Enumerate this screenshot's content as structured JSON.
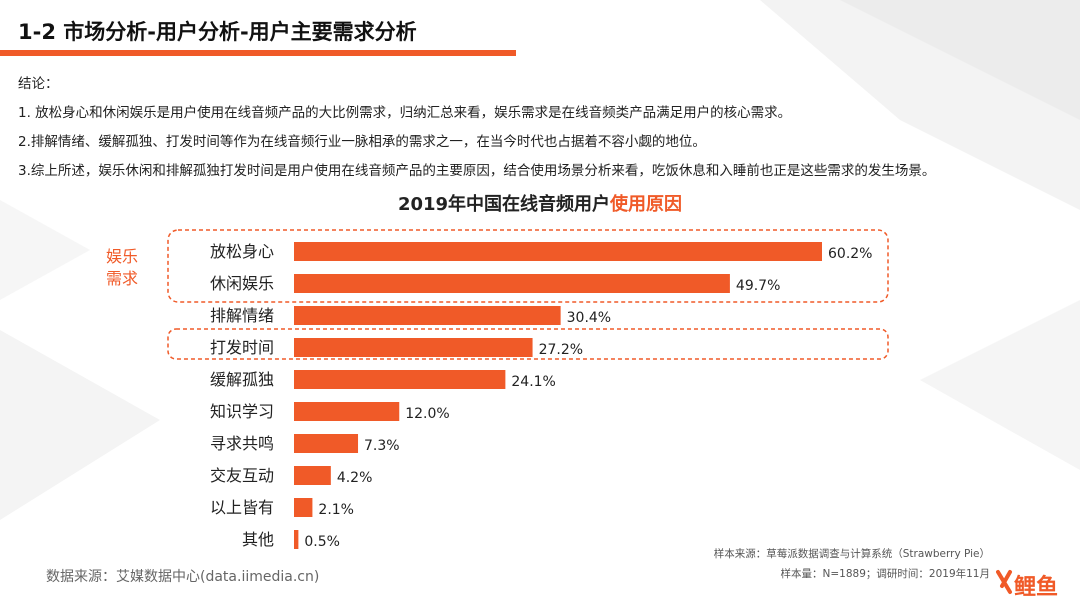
{
  "header": {
    "title": "1-2 市场分析-用户分析-用户主要需求分析"
  },
  "conclusion": {
    "heading": "结论：",
    "lines": [
      "1. 放松身心和休闲娱乐是用户使用在线音频产品的大比例需求，归纳汇总来看，娱乐需求是在线音频类产品满足用户的核心需求。",
      "2.排解情绪、缓解孤独、打发时间等作为在线音频行业一脉相承的需求之一，在当今时代也占据着不容小觑的地位。",
      "3.综上所述，娱乐休闲和排解孤独打发时间是用户使用在线音频产品的主要原因，结合使用场景分析来看，吃饭休息和入睡前也正是这些需求的发生场景。"
    ]
  },
  "chart_data": {
    "type": "bar",
    "orientation": "horizontal",
    "title_part1": "2019年中国在线音频用户",
    "title_part2": "使用原因",
    "categories": [
      "放松身心",
      "休闲娱乐",
      "排解情绪",
      "打发时间",
      "缓解孤独",
      "知识学习",
      "寻求共鸣",
      "交友互动",
      "以上皆有",
      "其他"
    ],
    "values": [
      60.2,
      49.7,
      30.4,
      27.2,
      24.1,
      12.0,
      7.3,
      4.2,
      2.1,
      0.5
    ],
    "value_labels": [
      "60.2%",
      "49.7%",
      "30.4%",
      "27.2%",
      "24.1%",
      "12.0%",
      "7.3%",
      "4.2%",
      "2.1%",
      "0.5%"
    ],
    "xlim": [
      0,
      60.2
    ],
    "bar_color": "#f05a28",
    "grid": false,
    "group_label_line1": "娱乐",
    "group_label_line2": "需求"
  },
  "footer": {
    "source_left": "数据来源：艾媒数据中心(data.iimedia.cn)",
    "source_right_line1": "样本来源：草莓派数据调查与计算系统（Strawberry Pie）",
    "source_right_line2": "样本量：N=1889；调研时间：2019年11月"
  },
  "logo": {
    "text": "鲤鱼",
    "icon": "x-logo-icon"
  },
  "colors": {
    "accent": "#f05a28",
    "text": "#222222",
    "muted": "#666666"
  }
}
